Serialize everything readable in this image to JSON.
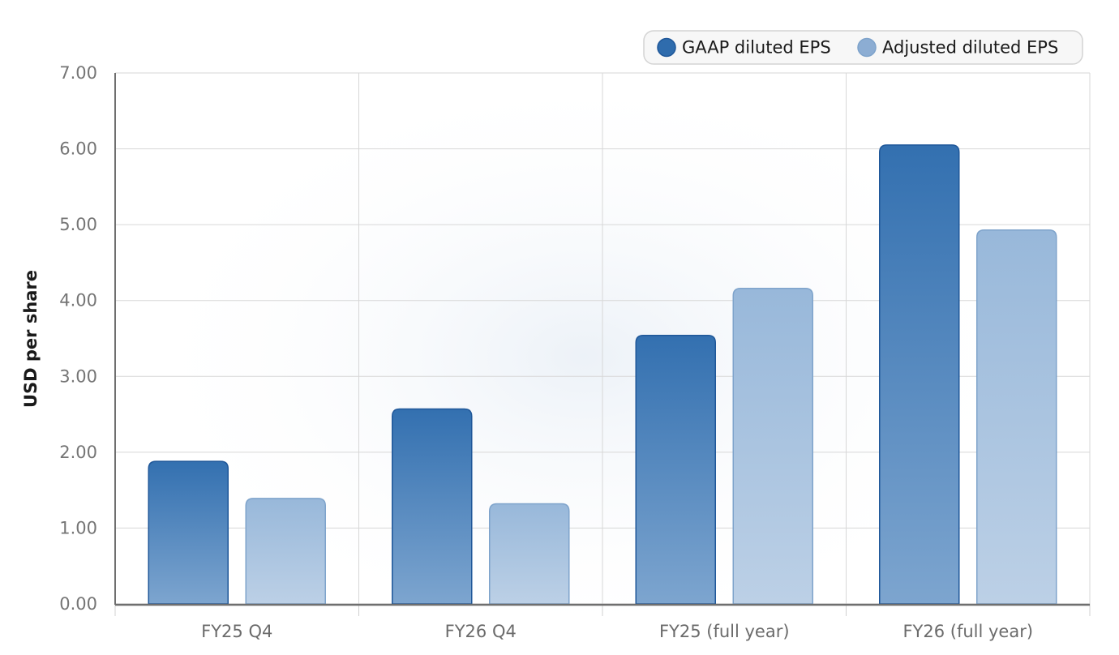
{
  "chart_data": {
    "type": "bar",
    "categories": [
      "FY25 Q4",
      "FY26 Q4",
      "FY25 (full year)",
      "FY26 (full year)"
    ],
    "series": [
      {
        "name": "GAAP diluted EPS",
        "values": [
          1.88,
          2.57,
          3.54,
          6.05
        ],
        "color": "#2f6cad"
      },
      {
        "name": "Adjusted diluted EPS",
        "values": [
          1.39,
          1.32,
          4.16,
          4.93
        ],
        "color": "#8cadd3"
      }
    ],
    "ylabel": "USD per share",
    "xlabel": "",
    "title": "",
    "ylim": [
      0,
      7
    ],
    "yticks": [
      "0.00",
      "1.00",
      "2.00",
      "3.00",
      "4.00",
      "5.00",
      "6.00",
      "7.00"
    ],
    "grid": true,
    "legend_position": "top-right"
  }
}
